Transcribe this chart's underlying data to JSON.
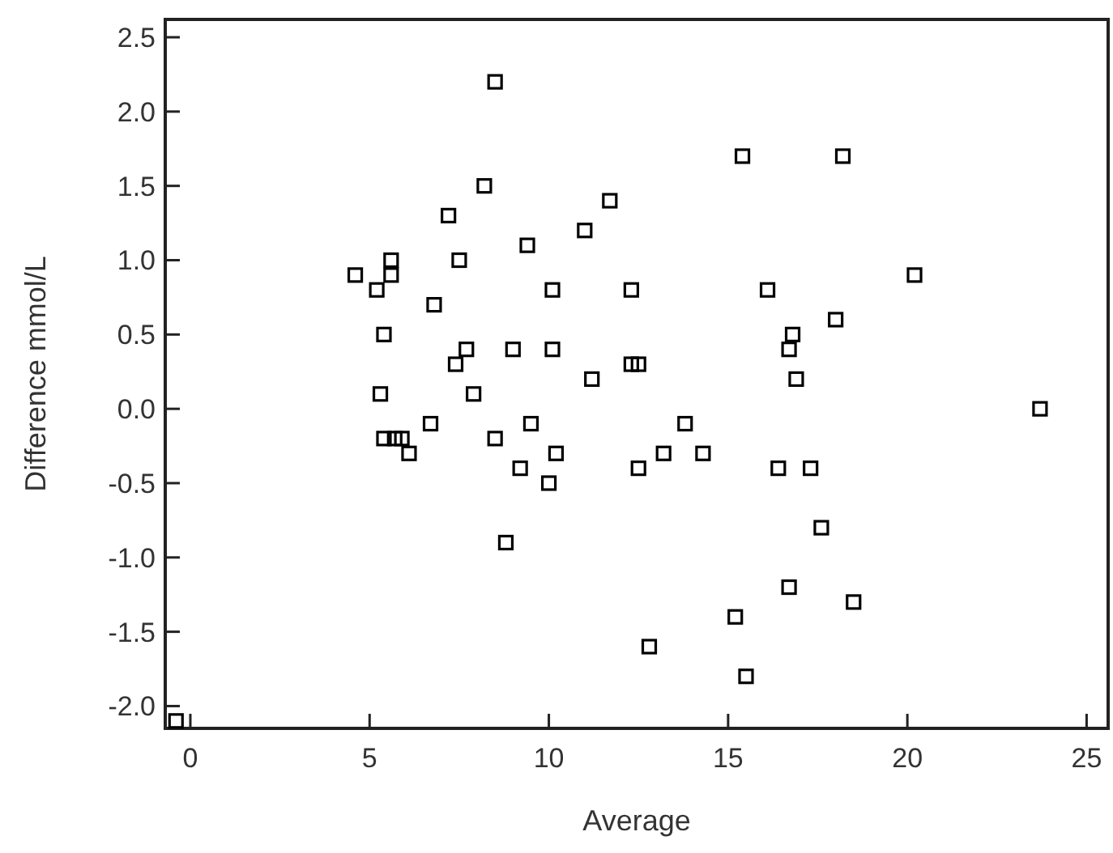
{
  "chart_data": {
    "type": "scatter",
    "xlabel": "Average",
    "ylabel": "Difference mmol/L",
    "marker": "square",
    "grid": false,
    "xlim": [
      -0.7,
      25.6
    ],
    "ylim": [
      -2.15,
      2.62
    ],
    "xticks": [
      0,
      5,
      10,
      15,
      20,
      25
    ],
    "yticks": [
      {
        "value": 2.5,
        "label": "2.5"
      },
      {
        "value": 2,
        "label": "2.0"
      },
      {
        "value": 1.5,
        "label": "1.5"
      },
      {
        "value": 1,
        "label": "1.0"
      },
      {
        "value": 0.5,
        "label": "0.5"
      },
      {
        "value": 0,
        "label": "0.0"
      },
      {
        "value": -0.5,
        "label": "-0.5"
      },
      {
        "value": -1,
        "label": "-1.0"
      },
      {
        "value": -1.5,
        "label": "-1.5"
      },
      {
        "value": -2,
        "label": "-2.0"
      }
    ],
    "series": [
      {
        "color": "#000000",
        "x": [
          -0.4,
          4.6,
          5.2,
          5.3,
          5.4,
          5.4,
          5.6,
          5.6,
          5.7,
          5.9,
          6.1,
          6.7,
          6.8,
          7.2,
          7.4,
          7.5,
          7.7,
          7.9,
          8.2,
          8.5,
          8.5,
          8.8,
          9.0,
          9.2,
          9.4,
          9.5,
          10.0,
          10.1,
          10.1,
          10.2,
          11.0,
          11.2,
          11.7,
          12.3,
          12.3,
          12.5,
          12.5,
          12.8,
          13.2,
          13.8,
          14.3,
          15.2,
          15.4,
          15.5,
          16.1,
          16.4,
          16.7,
          16.7,
          16.8,
          16.9,
          17.3,
          17.6,
          18.0,
          18.2,
          18.5,
          20.2,
          23.7
        ],
        "values": [
          -2.1,
          0.9,
          0.8,
          0.1,
          0.5,
          -0.2,
          1.0,
          0.9,
          -0.2,
          -0.2,
          -0.3,
          -0.1,
          0.7,
          1.3,
          0.3,
          1.0,
          0.4,
          0.1,
          1.5,
          2.2,
          -0.2,
          -0.9,
          0.4,
          -0.4,
          1.1,
          -0.1,
          -0.5,
          0.4,
          0.8,
          -0.3,
          1.2,
          0.2,
          1.4,
          0.8,
          0.3,
          0.3,
          -0.4,
          -1.6,
          -0.3,
          -0.1,
          -0.3,
          -1.4,
          1.7,
          -1.8,
          0.8,
          -0.4,
          -1.2,
          0.4,
          0.5,
          0.2,
          -0.4,
          -0.8,
          0.6,
          1.7,
          -1.3,
          0.9,
          0.0
        ]
      }
    ]
  }
}
